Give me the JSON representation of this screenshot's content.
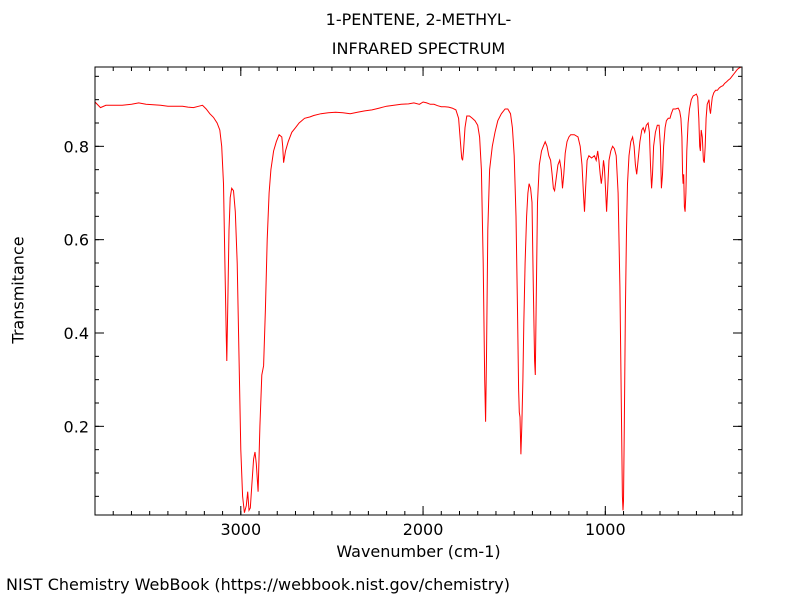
{
  "chart_data": {
    "type": "line",
    "title_lines": [
      "1-PENTENE, 2-METHYL-",
      "INFRARED SPECTRUM"
    ],
    "xlabel": "Wavenumber (cm-1)",
    "ylabel": "Transmitance",
    "xlim": [
      3800,
      250
    ],
    "ylim": [
      0.01,
      0.97
    ],
    "x_axis_reversed": true,
    "x_ticks": [
      3000,
      2000,
      1000
    ],
    "y_ticks": [
      0.2,
      0.4,
      0.6,
      0.8
    ],
    "x_minor_step": 100,
    "y_minor_step": 0.05,
    "grid": false,
    "series": [
      {
        "color": "#ff0000",
        "points": [
          [
            3800,
            0.895
          ],
          [
            3770,
            0.883
          ],
          [
            3740,
            0.888
          ],
          [
            3700,
            0.888
          ],
          [
            3650,
            0.888
          ],
          [
            3600,
            0.89
          ],
          [
            3560,
            0.893
          ],
          [
            3520,
            0.89
          ],
          [
            3480,
            0.889
          ],
          [
            3440,
            0.888
          ],
          [
            3400,
            0.886
          ],
          [
            3360,
            0.886
          ],
          [
            3320,
            0.886
          ],
          [
            3290,
            0.884
          ],
          [
            3260,
            0.883
          ],
          [
            3230,
            0.886
          ],
          [
            3210,
            0.888
          ],
          [
            3190,
            0.88
          ],
          [
            3170,
            0.87
          ],
          [
            3150,
            0.862
          ],
          [
            3130,
            0.85
          ],
          [
            3115,
            0.835
          ],
          [
            3105,
            0.8
          ],
          [
            3095,
            0.72
          ],
          [
            3087,
            0.55
          ],
          [
            3080,
            0.4
          ],
          [
            3077,
            0.34
          ],
          [
            3072,
            0.45
          ],
          [
            3065,
            0.62
          ],
          [
            3058,
            0.69
          ],
          [
            3050,
            0.71
          ],
          [
            3040,
            0.705
          ],
          [
            3030,
            0.66
          ],
          [
            3020,
            0.55
          ],
          [
            3010,
            0.35
          ],
          [
            3000,
            0.15
          ],
          [
            2990,
            0.05
          ],
          [
            2980,
            0.015
          ],
          [
            2970,
            0.03
          ],
          [
            2962,
            0.06
          ],
          [
            2955,
            0.02
          ],
          [
            2948,
            0.025
          ],
          [
            2940,
            0.07
          ],
          [
            2930,
            0.13
          ],
          [
            2922,
            0.145
          ],
          [
            2915,
            0.12
          ],
          [
            2905,
            0.06
          ],
          [
            2895,
            0.2
          ],
          [
            2885,
            0.31
          ],
          [
            2875,
            0.33
          ],
          [
            2865,
            0.45
          ],
          [
            2855,
            0.6
          ],
          [
            2845,
            0.7
          ],
          [
            2835,
            0.75
          ],
          [
            2820,
            0.79
          ],
          [
            2805,
            0.81
          ],
          [
            2790,
            0.825
          ],
          [
            2775,
            0.82
          ],
          [
            2770,
            0.8
          ],
          [
            2765,
            0.765
          ],
          [
            2755,
            0.79
          ],
          [
            2740,
            0.81
          ],
          [
            2720,
            0.83
          ],
          [
            2700,
            0.84
          ],
          [
            2680,
            0.85
          ],
          [
            2650,
            0.86
          ],
          [
            2620,
            0.863
          ],
          [
            2600,
            0.866
          ],
          [
            2560,
            0.87
          ],
          [
            2520,
            0.872
          ],
          [
            2480,
            0.873
          ],
          [
            2440,
            0.872
          ],
          [
            2400,
            0.87
          ],
          [
            2360,
            0.873
          ],
          [
            2320,
            0.876
          ],
          [
            2280,
            0.878
          ],
          [
            2240,
            0.882
          ],
          [
            2200,
            0.886
          ],
          [
            2160,
            0.888
          ],
          [
            2120,
            0.89
          ],
          [
            2080,
            0.891
          ],
          [
            2050,
            0.893
          ],
          [
            2020,
            0.89
          ],
          [
            2000,
            0.895
          ],
          [
            1980,
            0.893
          ],
          [
            1960,
            0.89
          ],
          [
            1940,
            0.89
          ],
          [
            1920,
            0.887
          ],
          [
            1900,
            0.885
          ],
          [
            1880,
            0.885
          ],
          [
            1860,
            0.884
          ],
          [
            1840,
            0.882
          ],
          [
            1820,
            0.878
          ],
          [
            1805,
            0.86
          ],
          [
            1795,
            0.81
          ],
          [
            1788,
            0.775
          ],
          [
            1783,
            0.77
          ],
          [
            1778,
            0.79
          ],
          [
            1770,
            0.84
          ],
          [
            1760,
            0.865
          ],
          [
            1745,
            0.865
          ],
          [
            1730,
            0.86
          ],
          [
            1715,
            0.855
          ],
          [
            1700,
            0.845
          ],
          [
            1690,
            0.82
          ],
          [
            1680,
            0.75
          ],
          [
            1670,
            0.55
          ],
          [
            1662,
            0.3
          ],
          [
            1657,
            0.21
          ],
          [
            1652,
            0.35
          ],
          [
            1645,
            0.62
          ],
          [
            1635,
            0.75
          ],
          [
            1620,
            0.8
          ],
          [
            1605,
            0.83
          ],
          [
            1590,
            0.855
          ],
          [
            1570,
            0.87
          ],
          [
            1550,
            0.88
          ],
          [
            1535,
            0.88
          ],
          [
            1520,
            0.87
          ],
          [
            1510,
            0.84
          ],
          [
            1500,
            0.78
          ],
          [
            1490,
            0.65
          ],
          [
            1482,
            0.45
          ],
          [
            1476,
            0.28
          ],
          [
            1472,
            0.23
          ],
          [
            1468,
            0.22
          ],
          [
            1463,
            0.14
          ],
          [
            1458,
            0.2
          ],
          [
            1452,
            0.3
          ],
          [
            1447,
            0.42
          ],
          [
            1440,
            0.55
          ],
          [
            1432,
            0.65
          ],
          [
            1425,
            0.7
          ],
          [
            1418,
            0.72
          ],
          [
            1410,
            0.71
          ],
          [
            1402,
            0.68
          ],
          [
            1395,
            0.5
          ],
          [
            1388,
            0.34
          ],
          [
            1384,
            0.31
          ],
          [
            1380,
            0.45
          ],
          [
            1372,
            0.68
          ],
          [
            1362,
            0.76
          ],
          [
            1350,
            0.79
          ],
          [
            1340,
            0.8
          ],
          [
            1330,
            0.81
          ],
          [
            1320,
            0.8
          ],
          [
            1310,
            0.78
          ],
          [
            1300,
            0.77
          ],
          [
            1292,
            0.74
          ],
          [
            1285,
            0.71
          ],
          [
            1278,
            0.705
          ],
          [
            1270,
            0.73
          ],
          [
            1260,
            0.76
          ],
          [
            1250,
            0.77
          ],
          [
            1242,
            0.75
          ],
          [
            1235,
            0.71
          ],
          [
            1228,
            0.74
          ],
          [
            1220,
            0.785
          ],
          [
            1210,
            0.81
          ],
          [
            1200,
            0.82
          ],
          [
            1190,
            0.825
          ],
          [
            1170,
            0.825
          ],
          [
            1150,
            0.82
          ],
          [
            1138,
            0.8
          ],
          [
            1128,
            0.76
          ],
          [
            1120,
            0.7
          ],
          [
            1114,
            0.66
          ],
          [
            1108,
            0.71
          ],
          [
            1100,
            0.77
          ],
          [
            1090,
            0.78
          ],
          [
            1075,
            0.775
          ],
          [
            1060,
            0.78
          ],
          [
            1050,
            0.77
          ],
          [
            1042,
            0.79
          ],
          [
            1035,
            0.77
          ],
          [
            1028,
            0.74
          ],
          [
            1022,
            0.72
          ],
          [
            1016,
            0.74
          ],
          [
            1010,
            0.77
          ],
          [
            1005,
            0.755
          ],
          [
            999,
            0.71
          ],
          [
            993,
            0.66
          ],
          [
            987,
            0.71
          ],
          [
            980,
            0.77
          ],
          [
            970,
            0.79
          ],
          [
            960,
            0.8
          ],
          [
            950,
            0.795
          ],
          [
            940,
            0.78
          ],
          [
            930,
            0.7
          ],
          [
            920,
            0.5
          ],
          [
            912,
            0.25
          ],
          [
            906,
            0.05
          ],
          [
            903,
            0.02
          ],
          [
            900,
            0.04
          ],
          [
            896,
            0.2
          ],
          [
            890,
            0.45
          ],
          [
            884,
            0.62
          ],
          [
            878,
            0.72
          ],
          [
            870,
            0.78
          ],
          [
            860,
            0.81
          ],
          [
            850,
            0.82
          ],
          [
            842,
            0.8
          ],
          [
            835,
            0.76
          ],
          [
            828,
            0.74
          ],
          [
            820,
            0.77
          ],
          [
            810,
            0.81
          ],
          [
            800,
            0.835
          ],
          [
            792,
            0.84
          ],
          [
            784,
            0.83
          ],
          [
            775,
            0.845
          ],
          [
            765,
            0.85
          ],
          [
            758,
            0.83
          ],
          [
            752,
            0.76
          ],
          [
            746,
            0.71
          ],
          [
            741,
            0.74
          ],
          [
            735,
            0.8
          ],
          [
            725,
            0.83
          ],
          [
            715,
            0.845
          ],
          [
            705,
            0.845
          ],
          [
            698,
            0.8
          ],
          [
            692,
            0.71
          ],
          [
            686,
            0.74
          ],
          [
            680,
            0.8
          ],
          [
            672,
            0.84
          ],
          [
            665,
            0.855
          ],
          [
            655,
            0.86
          ],
          [
            645,
            0.86
          ],
          [
            638,
            0.87
          ],
          [
            628,
            0.88
          ],
          [
            615,
            0.88
          ],
          [
            600,
            0.882
          ],
          [
            592,
            0.875
          ],
          [
            585,
            0.86
          ],
          [
            580,
            0.82
          ],
          [
            576,
            0.74
          ],
          [
            573,
            0.72
          ],
          [
            570,
            0.74
          ],
          [
            566,
            0.67
          ],
          [
            562,
            0.66
          ],
          [
            558,
            0.7
          ],
          [
            553,
            0.79
          ],
          [
            546,
            0.85
          ],
          [
            538,
            0.88
          ],
          [
            528,
            0.9
          ],
          [
            518,
            0.908
          ],
          [
            508,
            0.91
          ],
          [
            500,
            0.912
          ],
          [
            493,
            0.905
          ],
          [
            487,
            0.86
          ],
          [
            482,
            0.8
          ],
          [
            478,
            0.79
          ],
          [
            474,
            0.835
          ],
          [
            468,
            0.82
          ],
          [
            462,
            0.77
          ],
          [
            457,
            0.765
          ],
          [
            452,
            0.8
          ],
          [
            447,
            0.86
          ],
          [
            441,
            0.89
          ],
          [
            436,
            0.895
          ],
          [
            431,
            0.9
          ],
          [
            427,
            0.88
          ],
          [
            423,
            0.87
          ],
          [
            419,
            0.885
          ],
          [
            413,
            0.905
          ],
          [
            405,
            0.915
          ],
          [
            395,
            0.92
          ],
          [
            385,
            0.92
          ],
          [
            375,
            0.925
          ],
          [
            365,
            0.928
          ],
          [
            355,
            0.93
          ],
          [
            345,
            0.935
          ],
          [
            335,
            0.938
          ],
          [
            325,
            0.942
          ],
          [
            315,
            0.945
          ],
          [
            305,
            0.95
          ],
          [
            295,
            0.955
          ],
          [
            285,
            0.96
          ],
          [
            275,
            0.965
          ],
          [
            265,
            0.968
          ],
          [
            255,
            0.97
          ],
          [
            250,
            0.97
          ]
        ]
      }
    ]
  },
  "footer": "NIST Chemistry WebBook (https://webbook.nist.gov/chemistry)"
}
